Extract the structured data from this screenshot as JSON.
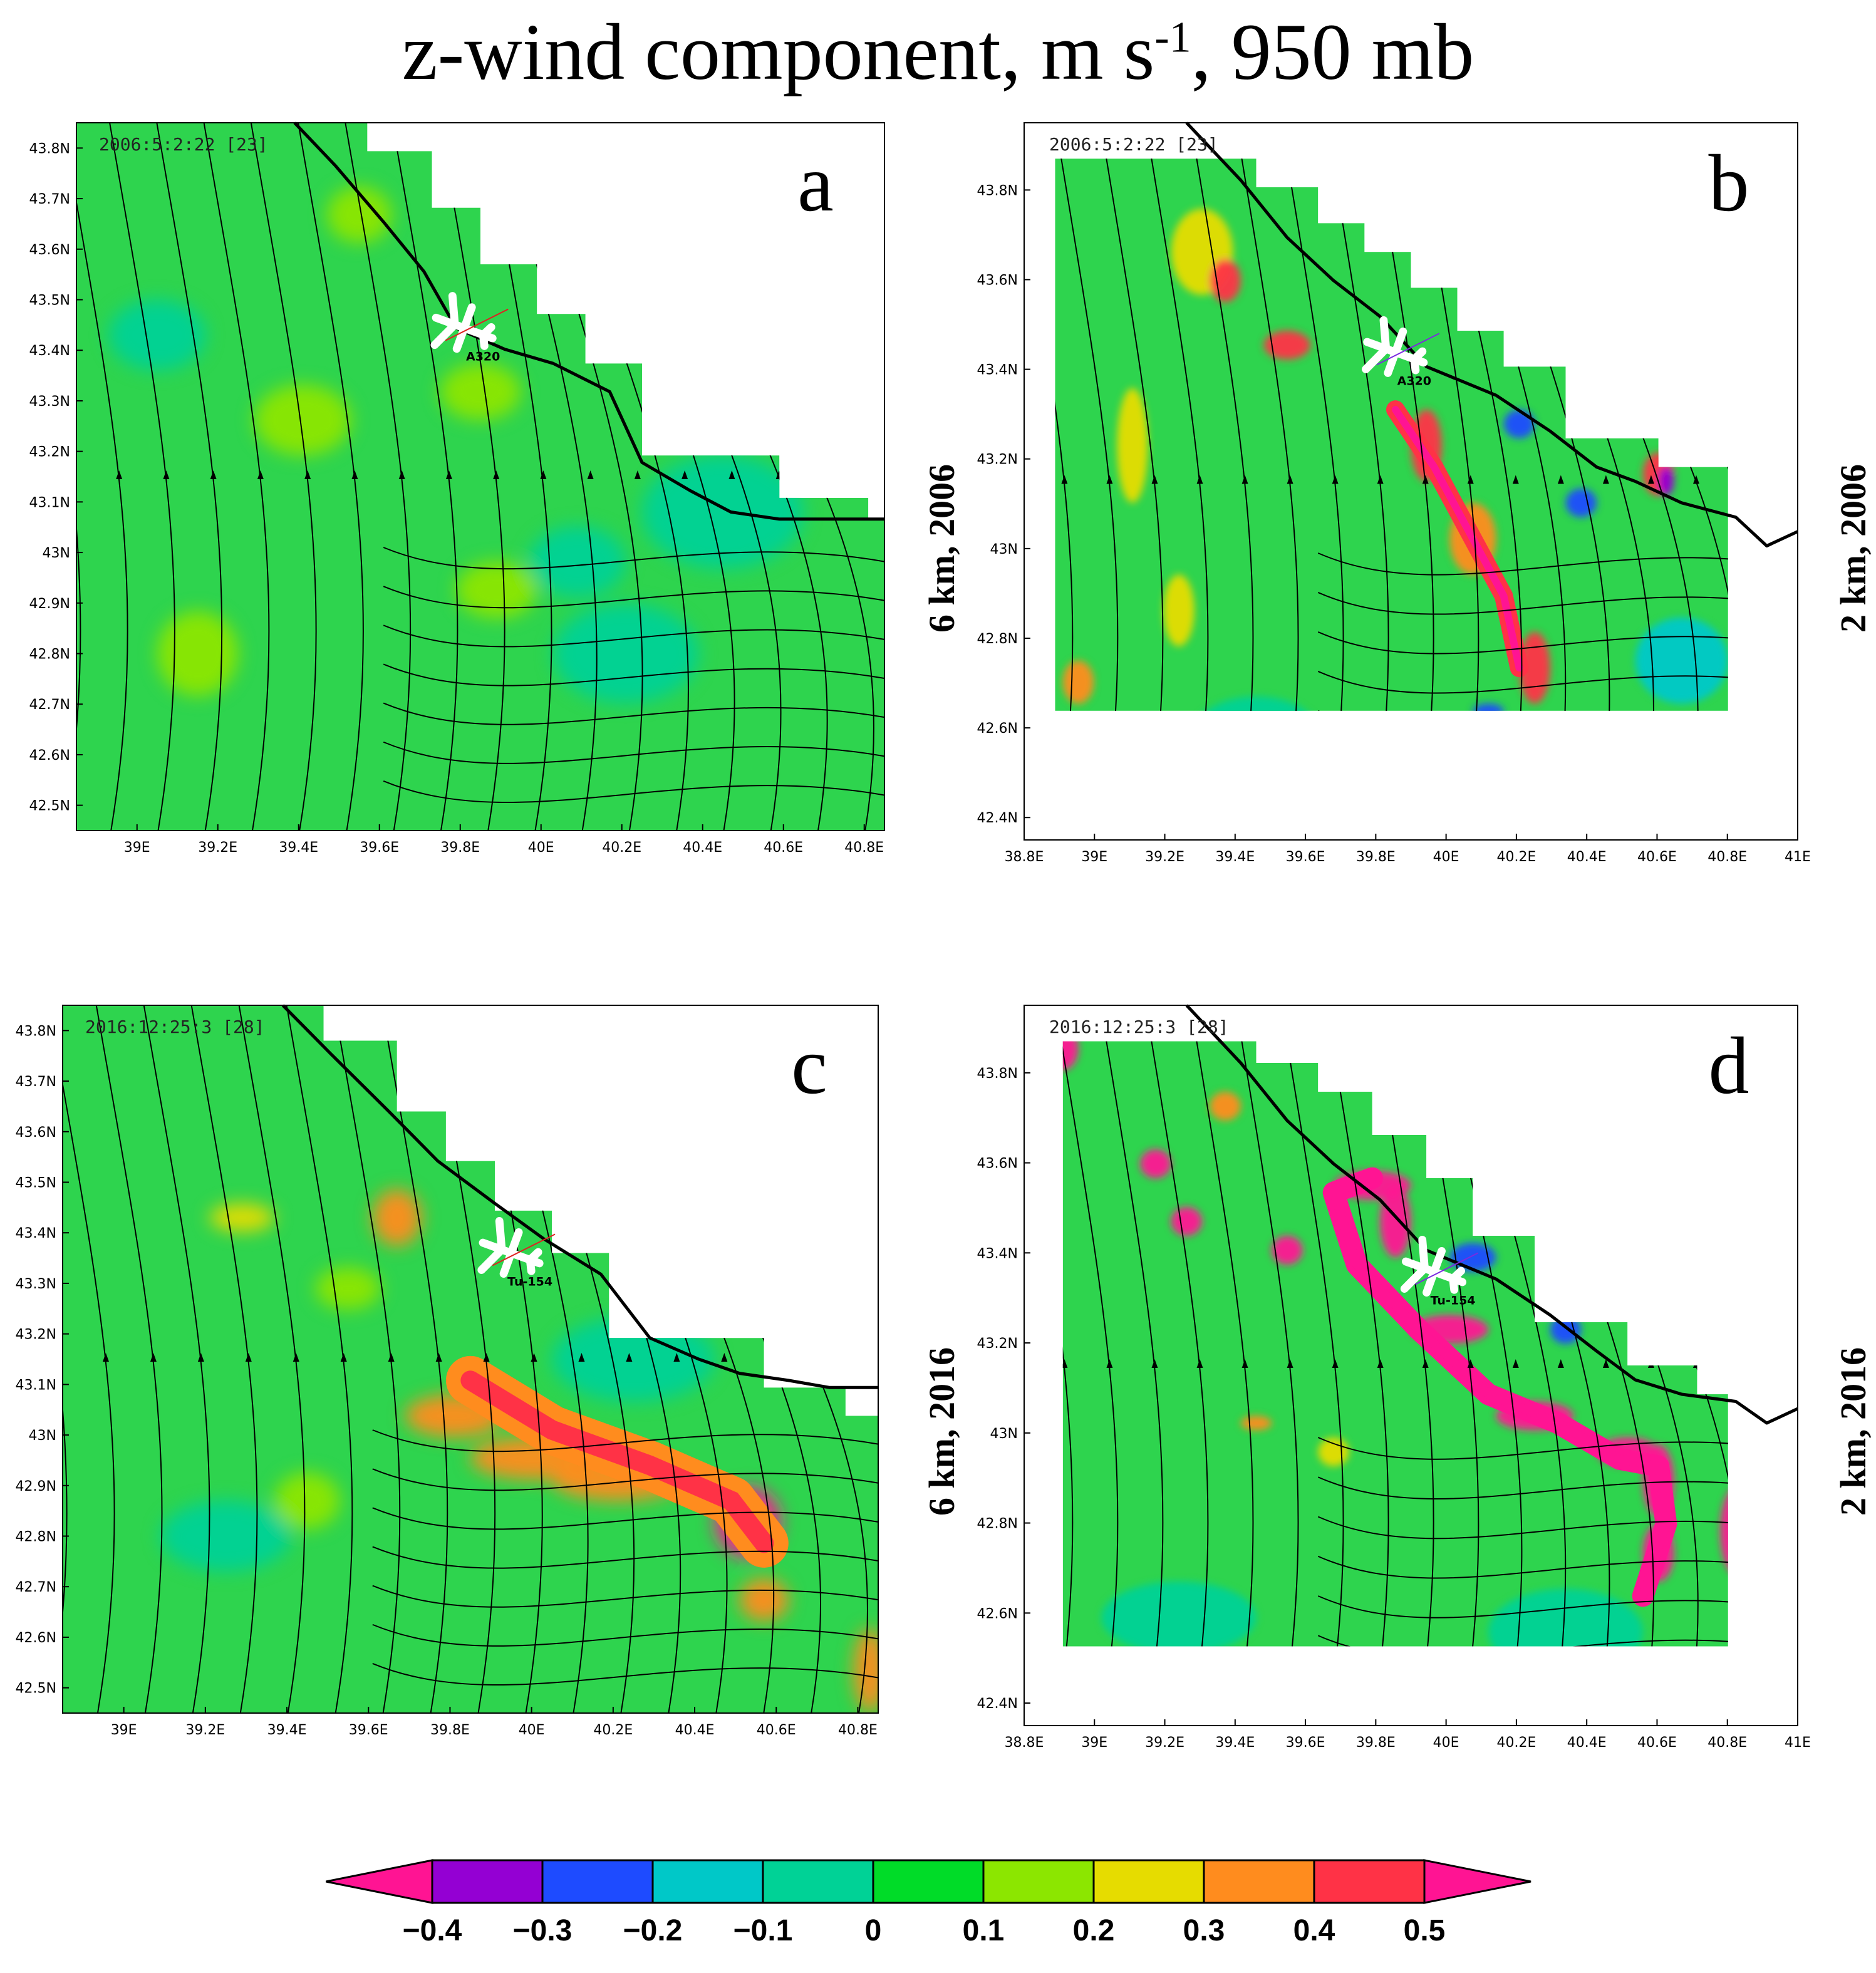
{
  "title": {
    "main": "z-wind component, m s",
    "sup": "-1",
    "suffix": ", 950 mb"
  },
  "colors": {
    "levels": [
      "#ff1493",
      "#9400d3",
      "#1e4bff",
      "#00c8c8",
      "#00d296",
      "#00dc28",
      "#8ce600",
      "#e6dc00",
      "#ff8c1e",
      "#ff3246",
      "#ff1493"
    ],
    "background_field": "#2ed44e",
    "streamline": "#000000",
    "coast": "#000000"
  },
  "chart_data": [
    {
      "type": "heatmap",
      "panel": "a",
      "timestamp": "2006:5:2:22 [23]",
      "side_label": "6 km,   2006",
      "aircraft": "A320",
      "xlabel": "",
      "ylabel": "",
      "xlim": [
        38.85,
        40.85
      ],
      "ylim": [
        42.45,
        43.85
      ],
      "xticks": [
        "39E",
        "39.2E",
        "39.4E",
        "39.6E",
        "39.8E",
        "40E",
        "40.2E",
        "40.4E",
        "40.6E",
        "40.8E"
      ],
      "yticks": [
        "42.5N",
        "42.6N",
        "42.7N",
        "42.8N",
        "42.9N",
        "43N",
        "43.1N",
        "43.2N",
        "43.3N",
        "43.4N",
        "43.5N",
        "43.6N",
        "43.7N",
        "43.8N"
      ]
    },
    {
      "type": "heatmap",
      "panel": "b",
      "timestamp": "2006:5:2:22 [23]",
      "side_label": "2 km,   2006",
      "aircraft": "A320",
      "xlabel": "",
      "ylabel": "",
      "xlim": [
        38.8,
        41.0
      ],
      "ylim": [
        42.35,
        43.95
      ],
      "xticks": [
        "38.8E",
        "39E",
        "39.2E",
        "39.4E",
        "39.6E",
        "39.8E",
        "40E",
        "40.2E",
        "40.4E",
        "40.6E",
        "40.8E",
        "41E"
      ],
      "yticks": [
        "42.4N",
        "42.6N",
        "42.8N",
        "43N",
        "43.2N",
        "43.4N",
        "43.6N",
        "43.8N"
      ]
    },
    {
      "type": "heatmap",
      "panel": "c",
      "timestamp": "2016:12:25:3 [28]",
      "side_label": "6 km,   2016",
      "aircraft": "Tu-154",
      "xlabel": "",
      "ylabel": "",
      "xlim": [
        38.85,
        40.85
      ],
      "ylim": [
        42.45,
        43.85
      ],
      "xticks": [
        "39E",
        "39.2E",
        "39.4E",
        "39.6E",
        "39.8E",
        "40E",
        "40.2E",
        "40.4E",
        "40.6E",
        "40.8E"
      ],
      "yticks": [
        "42.5N",
        "42.6N",
        "42.7N",
        "42.8N",
        "42.9N",
        "43N",
        "43.1N",
        "43.2N",
        "43.3N",
        "43.4N",
        "43.5N",
        "43.6N",
        "43.7N",
        "43.8N"
      ]
    },
    {
      "type": "heatmap",
      "panel": "d",
      "timestamp": "2016:12:25:3 [28]",
      "side_label": "2 km,   2016",
      "aircraft": "Tu-154",
      "xlabel": "",
      "ylabel": "",
      "xlim": [
        38.8,
        41.0
      ],
      "ylim": [
        42.35,
        43.95
      ],
      "xticks": [
        "38.8E",
        "39E",
        "39.2E",
        "39.4E",
        "39.6E",
        "39.8E",
        "40E",
        "40.2E",
        "40.4E",
        "40.6E",
        "40.8E",
        "41E"
      ],
      "yticks": [
        "42.4N",
        "42.6N",
        "42.8N",
        "43N",
        "43.2N",
        "43.4N",
        "43.6N",
        "43.8N"
      ]
    }
  ],
  "colorbar": {
    "labels": [
      "−0.4",
      "−0.3",
      "−0.2",
      "−0.1",
      "0",
      "0.1",
      "0.2",
      "0.3",
      "0.4",
      "0.5"
    ],
    "values": [
      -0.4,
      -0.3,
      -0.2,
      -0.1,
      0,
      0.1,
      0.2,
      0.3,
      0.4,
      0.5
    ]
  }
}
